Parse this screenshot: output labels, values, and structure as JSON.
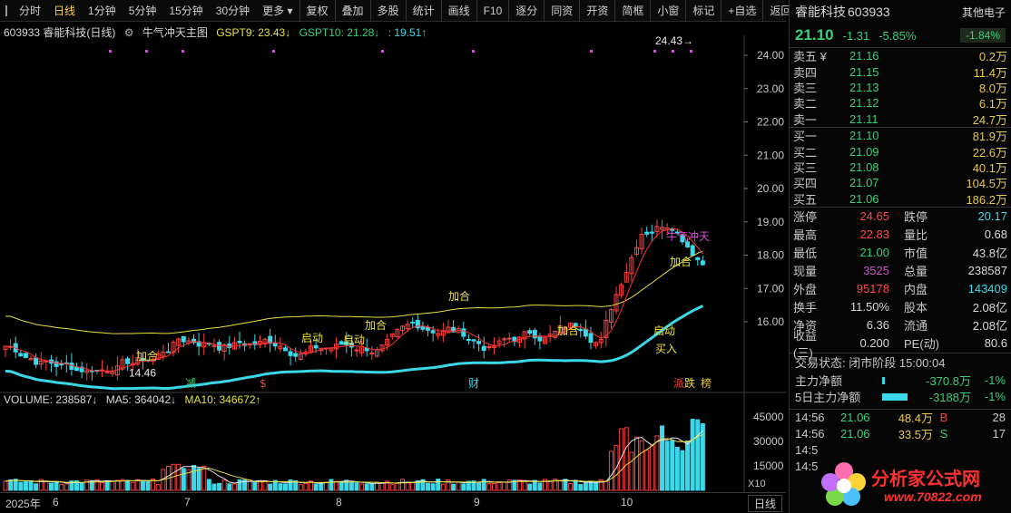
{
  "toolbar": {
    "items": [
      "分时",
      "日线",
      "1分钟",
      "5分钟",
      "15分钟",
      "30分钟",
      "更多"
    ],
    "more_arrow": "▾",
    "tools": [
      "复权",
      "叠加",
      "多股",
      "统计",
      "画线",
      "F10",
      "逐分",
      "同资",
      "开资",
      "简框",
      "小窗",
      "标记",
      "+自选",
      "返回"
    ]
  },
  "chart": {
    "title_code": "603933 睿能科技(日线)",
    "indicator_name": "牛气冲天主图",
    "gspt9": "GSPT9: 23.43↓",
    "gspt10": "GSPT10: 21.28↓",
    "extra": ": 19.51↑",
    "y_ticks": [
      "24.00",
      "23.00",
      "22.00",
      "21.00",
      "20.00",
      "19.00",
      "18.00",
      "17.00",
      "16.00"
    ],
    "high_label": "24.43",
    "low_label": "14.46",
    "annotations": [
      "加合",
      "启动",
      "启动",
      "加合",
      "加合",
      "加合",
      "加合",
      "启动",
      "买入",
      "牛气冲天"
    ],
    "markers": [
      "减",
      "$",
      "财",
      "派",
      "跌",
      "榜"
    ],
    "colors": {
      "up": "#ff4040",
      "down": "#3ad8e8",
      "ma_yellow": "#e8e040",
      "ma_red": "#ff3030",
      "ma_cyan": "#3ad8e8"
    }
  },
  "volume": {
    "title": "VOLUME: 238587↓",
    "ma5": "MA5: 364042↓",
    "ma10": "MA10: 346672↑",
    "y_ticks": [
      "45000",
      "30000",
      "15000"
    ],
    "unit": "X10"
  },
  "date_axis": {
    "labels": [
      "2025年",
      "6",
      "7",
      "8",
      "9",
      "10"
    ],
    "period": "日线"
  },
  "quote": {
    "name": "睿能科技",
    "code": "603933",
    "sector": "其他电子",
    "price": "21.10",
    "change": "-1.31",
    "pct": "-5.85%",
    "sector_pct": "-1.84%",
    "asks": [
      {
        "l": "卖五 ¥",
        "p": "21.16",
        "v": "0.2万"
      },
      {
        "l": "卖四",
        "p": "21.15",
        "v": "11.4万"
      },
      {
        "l": "卖三",
        "p": "21.13",
        "v": "8.0万"
      },
      {
        "l": "卖二",
        "p": "21.12",
        "v": "6.1万"
      },
      {
        "l": "卖一",
        "p": "21.11",
        "v": "24.7万"
      }
    ],
    "bids": [
      {
        "l": "买一",
        "p": "21.10",
        "v": "81.9万"
      },
      {
        "l": "买二",
        "p": "21.09",
        "v": "22.6万"
      },
      {
        "l": "买三",
        "p": "21.08",
        "v": "40.1万"
      },
      {
        "l": "买四",
        "p": "21.07",
        "v": "104.5万"
      },
      {
        "l": "买五",
        "p": "21.06",
        "v": "186.2万"
      }
    ],
    "stats": [
      {
        "k": "涨停",
        "v": "24.65",
        "k2": "跌停",
        "v2": "20.17"
      },
      {
        "k": "最高",
        "v": "22.83",
        "k2": "量比",
        "v2": "0.68"
      },
      {
        "k": "最低",
        "v": "21.00",
        "k2": "市值",
        "v2": "43.8亿"
      },
      {
        "k": "现量",
        "v": "3525",
        "k2": "总量",
        "v2": "238587"
      },
      {
        "k": "外盘",
        "v": "95178",
        "k2": "内盘",
        "v2": "143409"
      },
      {
        "k": "换手",
        "v": "11.50%",
        "k2": "股本",
        "v2": "2.08亿"
      },
      {
        "k": "净资",
        "v": "6.36",
        "k2": "流通",
        "v2": "2.08亿"
      },
      {
        "k": "收益(三)",
        "v": "0.200",
        "k2": "PE(动)",
        "v2": "80.6"
      }
    ],
    "status": "交易状态: 闭市阶段 15:00:04",
    "flows": [
      {
        "k": "主力净额",
        "v": "-370.8万",
        "p": "-1%"
      },
      {
        "k": "5日主力净额",
        "v": "-3188万",
        "p": "-1%"
      }
    ],
    "ticks": [
      {
        "t": "14:56",
        "p": "21.06",
        "v": "48.4万",
        "bs": "B",
        "n": "28"
      },
      {
        "t": "14:56",
        "p": "21.06",
        "v": "33.5万",
        "bs": "S",
        "n": "17"
      },
      {
        "t": "14:5",
        "p": "",
        "v": "",
        "bs": "",
        "n": ""
      },
      {
        "t": "14:5",
        "p": "",
        "v": "",
        "bs": "",
        "n": ""
      }
    ]
  },
  "logo": {
    "text": "分析家公式网",
    "url": "www.70822.com"
  }
}
